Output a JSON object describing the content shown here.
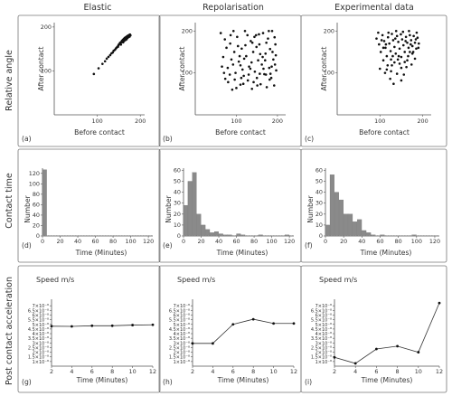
{
  "columns": [
    "Elastic",
    "Repolarisation",
    "Experimental data"
  ],
  "row_labels": [
    "Relative angle",
    "Contact time",
    "Post contact acceleration"
  ],
  "chart_data": [
    {
      "id": "a",
      "type": "scatter",
      "row": 0,
      "col": 0,
      "panel_label": "(a)",
      "xlabel": "Before contact",
      "ylabel": "After contact",
      "xlim": [
        0,
        210
      ],
      "ylim": [
        0,
        210
      ],
      "xticks": [
        100,
        200
      ],
      "yticks": [
        100,
        200
      ],
      "points": [
        [
          92,
          93
        ],
        [
          103,
          106
        ],
        [
          112,
          116
        ],
        [
          118,
          122
        ],
        [
          122,
          128
        ],
        [
          126,
          132
        ],
        [
          130,
          136
        ],
        [
          133,
          140
        ],
        [
          136,
          142
        ],
        [
          138,
          146
        ],
        [
          141,
          148
        ],
        [
          143,
          151
        ],
        [
          145,
          153
        ],
        [
          147,
          155
        ],
        [
          149,
          158
        ],
        [
          150,
          160
        ],
        [
          152,
          162
        ],
        [
          153,
          164
        ],
        [
          155,
          165
        ],
        [
          156,
          166
        ],
        [
          157,
          168
        ],
        [
          158,
          169
        ],
        [
          159,
          170
        ],
        [
          160,
          171
        ],
        [
          161,
          172
        ],
        [
          162,
          173
        ],
        [
          163,
          174
        ],
        [
          164,
          175
        ],
        [
          165,
          176
        ],
        [
          166,
          176
        ],
        [
          167,
          177
        ],
        [
          168,
          178
        ],
        [
          169,
          178
        ],
        [
          170,
          179
        ],
        [
          171,
          180
        ],
        [
          172,
          180
        ],
        [
          173,
          181
        ],
        [
          174,
          181
        ],
        [
          175,
          182
        ],
        [
          176,
          183
        ],
        [
          160,
          165
        ],
        [
          165,
          170
        ],
        [
          170,
          175
        ],
        [
          168,
          172
        ],
        [
          172,
          177
        ],
        [
          148,
          155
        ],
        [
          155,
          160
        ],
        [
          162,
          168
        ],
        [
          175,
          178
        ],
        [
          174,
          180
        ],
        [
          177,
          181
        ],
        [
          163,
          171
        ],
        [
          158,
          166
        ],
        [
          166,
          174
        ],
        [
          171,
          176
        ]
      ]
    },
    {
      "id": "b",
      "type": "scatter",
      "row": 0,
      "col": 1,
      "panel_label": "(b)",
      "xlabel": "Before contact",
      "ylabel": "After contact",
      "xlim": [
        0,
        220
      ],
      "ylim": [
        0,
        220
      ],
      "xticks": [
        100,
        200
      ],
      "yticks": [
        100,
        200
      ],
      "points": [
        [
          62,
          195
        ],
        [
          68,
          138
        ],
        [
          73,
          86
        ],
        [
          79,
          112
        ],
        [
          85,
          170
        ],
        [
          90,
          60
        ],
        [
          95,
          150
        ],
        [
          98,
          100
        ],
        [
          102,
          186
        ],
        [
          106,
          127
        ],
        [
          110,
          72
        ],
        [
          113,
          158
        ],
        [
          118,
          93
        ],
        [
          121,
          200
        ],
        [
          124,
          140
        ],
        [
          128,
          82
        ],
        [
          131,
          115
        ],
        [
          135,
          176
        ],
        [
          138,
          62
        ],
        [
          141,
          150
        ],
        [
          145,
          103
        ],
        [
          148,
          190
        ],
        [
          150,
          88
        ],
        [
          153,
          130
        ],
        [
          156,
          168
        ],
        [
          159,
          73
        ],
        [
          162,
          120
        ],
        [
          165,
          195
        ],
        [
          168,
          97
        ],
        [
          171,
          146
        ],
        [
          174,
          66
        ],
        [
          177,
          182
        ],
        [
          180,
          112
        ],
        [
          182,
          157
        ],
        [
          185,
          88
        ],
        [
          187,
          200
        ],
        [
          190,
          132
        ],
        [
          192,
          70
        ],
        [
          195,
          168
        ],
        [
          197,
          106
        ],
        [
          65,
          115
        ],
        [
          72,
          180
        ],
        [
          80,
          78
        ],
        [
          88,
          132
        ],
        [
          93,
          200
        ],
        [
          100,
          64
        ],
        [
          108,
          140
        ],
        [
          115,
          108
        ],
        [
          122,
          166
        ],
        [
          130,
          96
        ],
        [
          137,
          125
        ],
        [
          144,
          186
        ],
        [
          151,
          70
        ],
        [
          158,
          145
        ],
        [
          166,
          110
        ],
        [
          173,
          172
        ],
        [
          181,
          84
        ],
        [
          188,
          150
        ],
        [
          194,
          120
        ],
        [
          76,
          160
        ],
        [
          84,
          96
        ],
        [
          92,
          120
        ],
        [
          104,
          164
        ],
        [
          112,
          88
        ],
        [
          119,
          134
        ],
        [
          127,
          190
        ],
        [
          134,
          110
        ],
        [
          142,
          78
        ],
        [
          149,
          162
        ],
        [
          157,
          98
        ],
        [
          164,
          138
        ],
        [
          172,
          96
        ],
        [
          179,
          200
        ],
        [
          186,
          115
        ],
        [
          193,
          185
        ],
        [
          70,
          100
        ],
        [
          86,
          190
        ],
        [
          96,
          84
        ],
        [
          117,
          74
        ],
        [
          139,
          172
        ],
        [
          155,
          192
        ],
        [
          170,
          130
        ],
        [
          183,
          98
        ],
        [
          196,
          142
        ],
        [
          110,
          118
        ]
      ]
    },
    {
      "id": "c",
      "type": "scatter",
      "row": 0,
      "col": 2,
      "panel_label": "(c)",
      "xlabel": "Before contact",
      "ylabel": "After contact",
      "xlim": [
        0,
        220
      ],
      "ylim": [
        0,
        220
      ],
      "xticks": [
        100,
        200
      ],
      "yticks": [
        100,
        200
      ],
      "points": [
        [
          92,
          182
        ],
        [
          98,
          168
        ],
        [
          102,
          150
        ],
        [
          106,
          190
        ],
        [
          110,
          176
        ],
        [
          113,
          160
        ],
        [
          116,
          140
        ],
        [
          119,
          185
        ],
        [
          122,
          170
        ],
        [
          125,
          152
        ],
        [
          128,
          193
        ],
        [
          131,
          178
        ],
        [
          134,
          162
        ],
        [
          137,
          146
        ],
        [
          140,
          188
        ],
        [
          143,
          174
        ],
        [
          146,
          158
        ],
        [
          149,
          192
        ],
        [
          152,
          180
        ],
        [
          155,
          166
        ],
        [
          158,
          150
        ],
        [
          161,
          186
        ],
        [
          164,
          172
        ],
        [
          167,
          160
        ],
        [
          170,
          190
        ],
        [
          173,
          178
        ],
        [
          176,
          164
        ],
        [
          179,
          188
        ],
        [
          182,
          172
        ],
        [
          185,
          158
        ],
        [
          188,
          184
        ],
        [
          191,
          170
        ],
        [
          108,
          130
        ],
        [
          118,
          118
        ],
        [
          126,
          104
        ],
        [
          134,
          125
        ],
        [
          142,
          132
        ],
        [
          150,
          112
        ],
        [
          158,
          126
        ],
        [
          166,
          140
        ],
        [
          174,
          120
        ],
        [
          182,
          134
        ],
        [
          124,
          86
        ],
        [
          140,
          98
        ],
        [
          156,
          96
        ],
        [
          100,
          110
        ],
        [
          112,
          100
        ],
        [
          130,
          140
        ],
        [
          146,
          122
        ],
        [
          162,
          114
        ],
        [
          176,
          146
        ],
        [
          186,
          196
        ],
        [
          120,
          196
        ],
        [
          138,
          200
        ],
        [
          154,
          198
        ],
        [
          168,
          200
        ],
        [
          96,
          196
        ],
        [
          104,
          178
        ],
        [
          114,
          168
        ],
        [
          136,
          182
        ],
        [
          160,
          176
        ],
        [
          172,
          168
        ],
        [
          184,
          180
        ],
        [
          128,
          118
        ],
        [
          144,
          140
        ],
        [
          164,
          130
        ],
        [
          178,
          150
        ],
        [
          190,
          160
        ],
        [
          108,
          160
        ],
        [
          126,
          132
        ],
        [
          150,
          138
        ],
        [
          170,
          150
        ],
        [
          132,
          74
        ],
        [
          150,
          82
        ],
        [
          116,
          108
        ]
      ]
    },
    {
      "id": "d",
      "type": "bar",
      "row": 1,
      "col": 0,
      "panel_label": "(d)",
      "xlabel": "Time (Minutes)",
      "ylabel": "Number",
      "xlim": [
        0,
        125
      ],
      "ylim": [
        0,
        130
      ],
      "xticks": [
        0,
        20,
        40,
        60,
        80,
        100,
        120
      ],
      "yticks": [
        0,
        20,
        40,
        60,
        80,
        100,
        120
      ],
      "bin_width": 5,
      "bins": [
        0
      ],
      "values": [
        127
      ]
    },
    {
      "id": "e",
      "type": "bar",
      "row": 1,
      "col": 1,
      "panel_label": "(e)",
      "xlabel": "Time (Minutes)",
      "ylabel": "Number",
      "xlim": [
        0,
        125
      ],
      "ylim": [
        0,
        62
      ],
      "xticks": [
        0,
        20,
        40,
        60,
        80,
        100,
        120
      ],
      "yticks": [
        0,
        10,
        20,
        30,
        40,
        50,
        60
      ],
      "bin_width": 5,
      "bins": [
        0,
        5,
        10,
        15,
        20,
        25,
        30,
        35,
        40,
        45,
        50,
        55,
        60,
        65,
        70,
        75,
        80,
        85,
        90,
        95,
        100,
        105,
        110,
        115,
        120
      ],
      "values": [
        28,
        50,
        58,
        20,
        10,
        6,
        3,
        4,
        2,
        1,
        1,
        0,
        2,
        1,
        0,
        0,
        0,
        1,
        0,
        0,
        0,
        0,
        0,
        1,
        0
      ]
    },
    {
      "id": "f",
      "type": "bar",
      "row": 1,
      "col": 2,
      "panel_label": "(f)",
      "xlabel": "Time (Minutes)",
      "ylabel": "Number",
      "xlim": [
        0,
        125
      ],
      "ylim": [
        0,
        62
      ],
      "xticks": [
        0,
        20,
        40,
        60,
        80,
        100,
        120
      ],
      "yticks": [
        0,
        10,
        20,
        30,
        40,
        50,
        60
      ],
      "bin_width": 5,
      "bins": [
        0,
        5,
        10,
        15,
        20,
        25,
        30,
        35,
        40,
        45,
        50,
        55,
        60,
        65,
        70,
        75,
        80,
        85,
        90,
        95,
        100,
        105,
        110,
        115,
        120
      ],
      "values": [
        10,
        56,
        40,
        33,
        20,
        20,
        13,
        15,
        5,
        3,
        1,
        0,
        1,
        0,
        0,
        0,
        0,
        0,
        0,
        1,
        0,
        0,
        0,
        0,
        0
      ]
    },
    {
      "id": "g",
      "type": "line",
      "row": 2,
      "col": 0,
      "panel_label": "(g)",
      "title": "Speed m/s",
      "xlabel": "Time (Minutes)",
      "xlim": [
        2,
        12
      ],
      "ylim": [
        0.5,
        7.7
      ],
      "xticks": [
        2,
        4,
        6,
        8,
        10,
        12
      ],
      "yticks": [
        1,
        1.5,
        2,
        2.5,
        3,
        3.5,
        4,
        4.5,
        5,
        5.5,
        6,
        6.5,
        7
      ],
      "ytick_labels": [
        "1×10⁻⁸",
        "1.5×10⁻⁸",
        "2×10⁻⁸",
        "2.5×10⁻⁸",
        "3×10⁻⁸",
        "3.5×10⁻⁸",
        "4×10⁻⁸",
        "4.5×10⁻⁸",
        "5×10⁻⁸",
        "5.5×10⁻⁸",
        "6×10⁻⁸",
        "6.5×10⁻⁸",
        "7×10⁻⁸"
      ],
      "x": [
        2,
        4,
        6,
        8,
        10,
        12
      ],
      "values": [
        4.8,
        4.78,
        4.85,
        4.85,
        4.92,
        4.95
      ]
    },
    {
      "id": "h",
      "type": "line",
      "row": 2,
      "col": 1,
      "panel_label": "(h)",
      "title": "Speed m/s",
      "xlabel": "Time (Minutes)",
      "xlim": [
        2,
        12
      ],
      "ylim": [
        0.5,
        7.7
      ],
      "xticks": [
        2,
        4,
        6,
        8,
        10,
        12
      ],
      "yticks": [
        1,
        1.5,
        2,
        2.5,
        3,
        3.5,
        4,
        4.5,
        5,
        5.5,
        6,
        6.5,
        7
      ],
      "ytick_labels": [
        "1×10⁻⁸",
        "1.5×10⁻⁸",
        "2×10⁻⁸",
        "2.5×10⁻⁸",
        "3×10⁻⁸",
        "3.5×10⁻⁸",
        "4×10⁻⁸",
        "4.5×10⁻⁸",
        "5×10⁻⁸",
        "5.5×10⁻⁸",
        "6×10⁻⁸",
        "6.5×10⁻⁸",
        "7×10⁻⁸"
      ],
      "x": [
        2,
        4,
        6,
        8,
        10,
        12
      ],
      "values": [
        2.95,
        2.95,
        5.0,
        5.55,
        5.1,
        5.1
      ]
    },
    {
      "id": "i",
      "type": "line",
      "row": 2,
      "col": 2,
      "panel_label": "(i)",
      "title": "Speed m/s",
      "xlabel": "Time (Minutes)",
      "xlim": [
        2,
        12
      ],
      "ylim": [
        0.5,
        7.7
      ],
      "xticks": [
        2,
        4,
        6,
        8,
        10,
        12
      ],
      "yticks": [
        1,
        1.5,
        2,
        2.5,
        3,
        3.5,
        4,
        4.5,
        5,
        5.5,
        6,
        6.5,
        7
      ],
      "ytick_labels": [
        "1×10⁻⁸",
        "1.5×10⁻⁸",
        "2×10⁻⁸",
        "2.5×10⁻⁸",
        "3×10⁻⁸",
        "3.5×10⁻⁸",
        "4×10⁻⁸",
        "4.5×10⁻⁸",
        "5×10⁻⁸",
        "5.5×10⁻⁸",
        "6×10⁻⁸",
        "6.5×10⁻⁸",
        "7×10⁻⁸"
      ],
      "x": [
        2,
        4,
        6,
        8,
        10,
        12
      ],
      "values": [
        1.45,
        0.8,
        2.35,
        2.65,
        2.0,
        7.3
      ]
    }
  ]
}
